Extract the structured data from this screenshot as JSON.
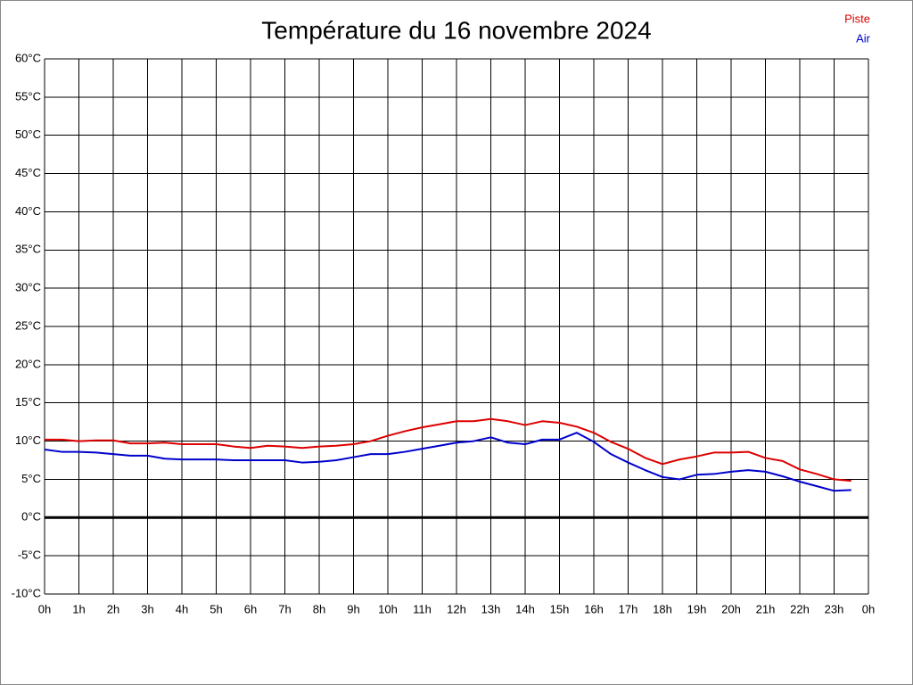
{
  "chart_data": {
    "type": "line",
    "title": "Température du 16 novembre 2024",
    "x": [
      0,
      0.5,
      1,
      1.5,
      2,
      2.5,
      3,
      3.5,
      4,
      4.5,
      5,
      5.5,
      6,
      6.5,
      7,
      7.5,
      8,
      8.5,
      9,
      9.5,
      10,
      10.5,
      11,
      11.5,
      12,
      12.5,
      13,
      13.5,
      14,
      14.5,
      15,
      15.5,
      16,
      16.5,
      17,
      17.5,
      18,
      18.5,
      19,
      19.5,
      20,
      20.5,
      21,
      21.5,
      22,
      22.5,
      23,
      23.5
    ],
    "series": [
      {
        "name": "Piste",
        "color": "#dd0000",
        "values": [
          10.2,
          10.2,
          10.0,
          10.1,
          10.1,
          9.7,
          9.7,
          9.8,
          9.6,
          9.6,
          9.6,
          9.3,
          9.1,
          9.4,
          9.3,
          9.1,
          9.3,
          9.4,
          9.6,
          10.0,
          10.7,
          11.3,
          11.8,
          12.2,
          12.6,
          12.6,
          12.9,
          12.6,
          12.1,
          12.6,
          12.4,
          11.9,
          11.1,
          9.9,
          9.0,
          7.8,
          7.0,
          7.6,
          8.0,
          8.5,
          8.5,
          8.6,
          7.8,
          7.4,
          6.3,
          5.7,
          5.0,
          4.8
        ]
      },
      {
        "name": "Air",
        "color": "#0000cc",
        "values": [
          8.9,
          8.6,
          8.6,
          8.5,
          8.3,
          8.1,
          8.1,
          7.7,
          7.6,
          7.6,
          7.6,
          7.5,
          7.5,
          7.5,
          7.5,
          7.2,
          7.3,
          7.5,
          7.9,
          8.3,
          8.3,
          8.6,
          9.0,
          9.4,
          9.8,
          10.0,
          10.5,
          9.8,
          9.6,
          10.2,
          10.2,
          11.1,
          9.9,
          8.3,
          7.2,
          6.2,
          5.3,
          5.0,
          5.6,
          5.7,
          6.0,
          6.2,
          6.0,
          5.4,
          4.7,
          4.1,
          3.5,
          3.6
        ]
      }
    ],
    "xlim": [
      0,
      24
    ],
    "xticks": [
      {
        "value": 0,
        "label": "0h"
      },
      {
        "value": 1,
        "label": "1h"
      },
      {
        "value": 2,
        "label": "2h"
      },
      {
        "value": 3,
        "label": "3h"
      },
      {
        "value": 4,
        "label": "4h"
      },
      {
        "value": 5,
        "label": "5h"
      },
      {
        "value": 6,
        "label": "6h"
      },
      {
        "value": 7,
        "label": "7h"
      },
      {
        "value": 8,
        "label": "8h"
      },
      {
        "value": 9,
        "label": "9h"
      },
      {
        "value": 10,
        "label": "10h"
      },
      {
        "value": 11,
        "label": "11h"
      },
      {
        "value": 12,
        "label": "12h"
      },
      {
        "value": 13,
        "label": "13h"
      },
      {
        "value": 14,
        "label": "14h"
      },
      {
        "value": 15,
        "label": "15h"
      },
      {
        "value": 16,
        "label": "16h"
      },
      {
        "value": 17,
        "label": "17h"
      },
      {
        "value": 18,
        "label": "18h"
      },
      {
        "value": 19,
        "label": "19h"
      },
      {
        "value": 20,
        "label": "20h"
      },
      {
        "value": 21,
        "label": "21h"
      },
      {
        "value": 22,
        "label": "22h"
      },
      {
        "value": 23,
        "label": "23h"
      },
      {
        "value": 24,
        "label": "0h"
      }
    ],
    "ylim": [
      -10,
      60
    ],
    "yticks": [
      {
        "value": -10,
        "label": "-10°C"
      },
      {
        "value": -5,
        "label": "-5°C"
      },
      {
        "value": 0,
        "label": "0°C"
      },
      {
        "value": 5,
        "label": "5°C"
      },
      {
        "value": 10,
        "label": "10°C"
      },
      {
        "value": 15,
        "label": "15°C"
      },
      {
        "value": 20,
        "label": "20°C"
      },
      {
        "value": 25,
        "label": "25°C"
      },
      {
        "value": 30,
        "label": "30°C"
      },
      {
        "value": 35,
        "label": "35°C"
      },
      {
        "value": 40,
        "label": "40°C"
      },
      {
        "value": 45,
        "label": "45°C"
      },
      {
        "value": 50,
        "label": "50°C"
      },
      {
        "value": 55,
        "label": "55°C"
      },
      {
        "value": 60,
        "label": "60°C"
      }
    ],
    "grid": true,
    "legend": "upper right"
  }
}
